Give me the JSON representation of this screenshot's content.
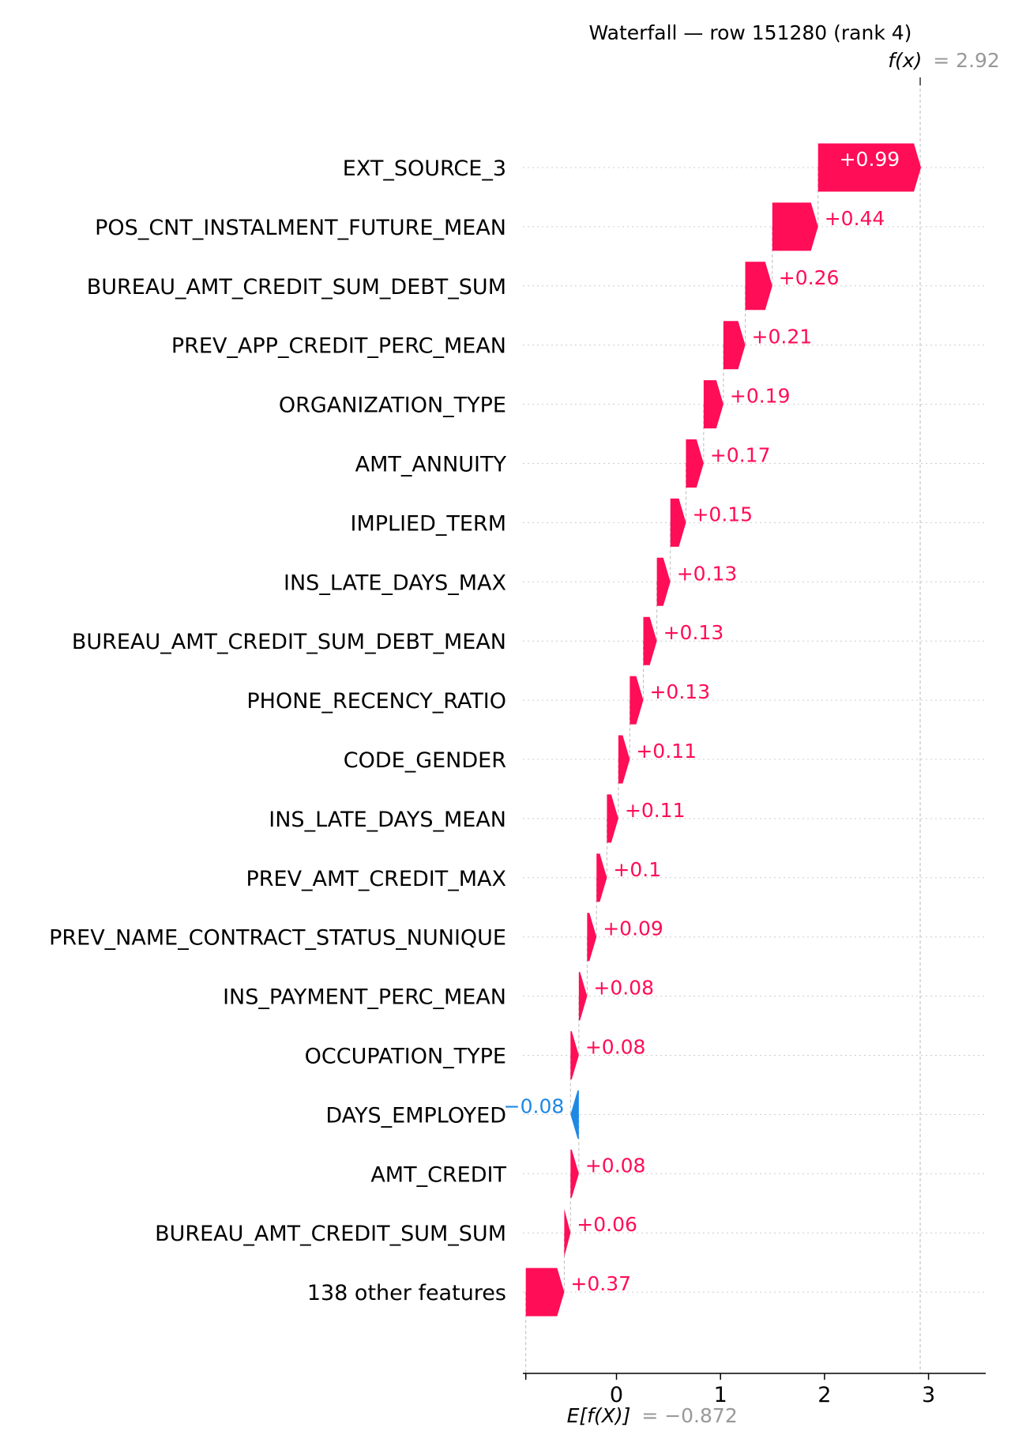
{
  "chart_data": {
    "type": "waterfall",
    "title": "Waterfall — row 151280 (rank 4)",
    "base_value": -0.872,
    "base_label_prefix": "E[f(X)]",
    "base_label_value": "= −0.872",
    "fx_value": 2.92,
    "fx_label_prefix": "f(x)",
    "fx_label_value": "= 2.92",
    "xlim": [
      -0.9,
      3.55
    ],
    "xticks": [
      0,
      1,
      2,
      3
    ],
    "xtick_labels": [
      "0",
      "1",
      "2",
      "3"
    ],
    "colors": {
      "positive": "#ff0d57",
      "negative": "#1e88e5",
      "guide": "#bbbbbb"
    },
    "features": [
      {
        "name": "EXT_SOURCE_3",
        "value": 0.99,
        "label": "+0.99"
      },
      {
        "name": "POS_CNT_INSTALMENT_FUTURE_MEAN",
        "value": 0.44,
        "label": "+0.44"
      },
      {
        "name": "BUREAU_AMT_CREDIT_SUM_DEBT_SUM",
        "value": 0.26,
        "label": "+0.26"
      },
      {
        "name": "PREV_APP_CREDIT_PERC_MEAN",
        "value": 0.21,
        "label": "+0.21"
      },
      {
        "name": "ORGANIZATION_TYPE",
        "value": 0.19,
        "label": "+0.19"
      },
      {
        "name": "AMT_ANNUITY",
        "value": 0.17,
        "label": "+0.17"
      },
      {
        "name": "IMPLIED_TERM",
        "value": 0.15,
        "label": "+0.15"
      },
      {
        "name": "INS_LATE_DAYS_MAX",
        "value": 0.13,
        "label": "+0.13"
      },
      {
        "name": "BUREAU_AMT_CREDIT_SUM_DEBT_MEAN",
        "value": 0.13,
        "label": "+0.13"
      },
      {
        "name": "PHONE_RECENCY_RATIO",
        "value": 0.13,
        "label": "+0.13"
      },
      {
        "name": "CODE_GENDER",
        "value": 0.11,
        "label": "+0.11"
      },
      {
        "name": "INS_LATE_DAYS_MEAN",
        "value": 0.11,
        "label": "+0.11"
      },
      {
        "name": "PREV_AMT_CREDIT_MAX",
        "value": 0.1,
        "label": "+0.1"
      },
      {
        "name": "PREV_NAME_CONTRACT_STATUS_NUNIQUE",
        "value": 0.09,
        "label": "+0.09"
      },
      {
        "name": "INS_PAYMENT_PERC_MEAN",
        "value": 0.08,
        "label": "+0.08"
      },
      {
        "name": "OCCUPATION_TYPE",
        "value": 0.08,
        "label": "+0.08"
      },
      {
        "name": "DAYS_EMPLOYED",
        "value": -0.08,
        "label": "−0.08"
      },
      {
        "name": "AMT_CREDIT",
        "value": 0.08,
        "label": "+0.08"
      },
      {
        "name": "BUREAU_AMT_CREDIT_SUM_SUM",
        "value": 0.06,
        "label": "+0.06"
      },
      {
        "name": "138 other features",
        "value": 0.37,
        "label": "+0.37"
      }
    ]
  }
}
